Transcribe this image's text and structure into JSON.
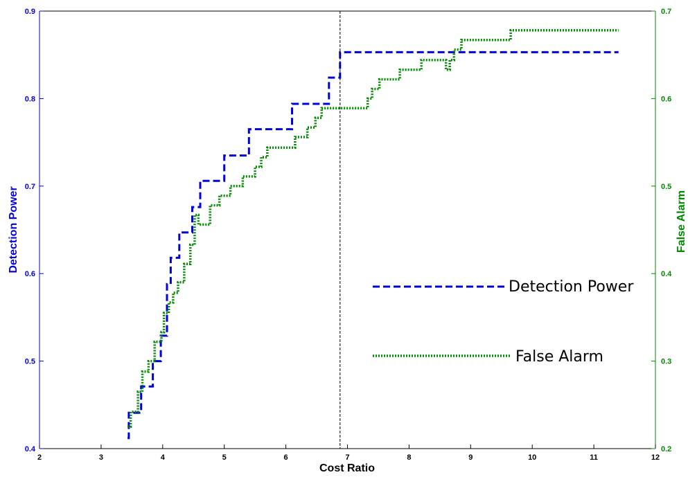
{
  "chart_data": {
    "type": "line",
    "title": "",
    "xlabel": "Cost Ratio",
    "ylabel": "Detection Power",
    "y2label": "False Alarm",
    "xlim": [
      2,
      12
    ],
    "ylim": [
      0.4,
      0.9
    ],
    "y2lim": [
      0.2,
      0.7
    ],
    "x_ticks": [
      "2",
      "3",
      "4",
      "5",
      "6",
      "7",
      "8",
      "9",
      "10",
      "11",
      "12"
    ],
    "y_ticks": [
      "0.4",
      "0.5",
      "0.6",
      "0.7",
      "0.8",
      "0.9"
    ],
    "y2_ticks": [
      "0.2",
      "0.3",
      "0.4",
      "0.5",
      "0.6",
      "0.7"
    ],
    "grid": false,
    "legend_position": "right-center",
    "vertical_line_x": 6.88,
    "series": [
      {
        "name": "Detection Power",
        "axis": "left",
        "style": "dashed",
        "color": "#0000dd",
        "x": [
          3.43,
          3.45,
          3.65,
          3.84,
          3.97,
          4.07,
          4.13,
          4.27,
          4.48,
          4.61,
          5.0,
          5.4,
          6.1,
          6.7,
          6.88,
          11.4
        ],
        "y": [
          0.412,
          0.441,
          0.471,
          0.5,
          0.529,
          0.588,
          0.618,
          0.647,
          0.676,
          0.706,
          0.735,
          0.765,
          0.794,
          0.824,
          0.853,
          0.853
        ]
      },
      {
        "name": "False Alarm",
        "axis": "right",
        "style": "dotted",
        "color": "#008800",
        "x": [
          3.43,
          3.48,
          3.6,
          3.67,
          3.77,
          3.87,
          3.98,
          4.02,
          4.1,
          4.17,
          4.25,
          4.35,
          4.45,
          4.52,
          4.58,
          4.77,
          4.92,
          5.1,
          5.3,
          5.5,
          5.6,
          5.7,
          6.15,
          6.35,
          6.48,
          6.58,
          7.33,
          7.4,
          7.52,
          7.85,
          8.2,
          8.5,
          8.6,
          8.66,
          8.73,
          8.85,
          9.0,
          9.65,
          11.4
        ],
        "y": [
          0.225,
          0.242,
          0.265,
          0.288,
          0.3,
          0.322,
          0.333,
          0.355,
          0.367,
          0.378,
          0.39,
          0.411,
          0.433,
          0.467,
          0.456,
          0.478,
          0.489,
          0.5,
          0.511,
          0.522,
          0.533,
          0.544,
          0.556,
          0.567,
          0.578,
          0.589,
          0.6,
          0.611,
          0.622,
          0.633,
          0.644,
          0.644,
          0.633,
          0.644,
          0.656,
          0.667,
          0.667,
          0.678,
          0.678
        ]
      }
    ],
    "legend": [
      {
        "label": "Detection Power",
        "style": "dashed",
        "color": "#0000dd"
      },
      {
        "label": "False Alarm",
        "style": "dotted",
        "color": "#008800"
      }
    ]
  }
}
